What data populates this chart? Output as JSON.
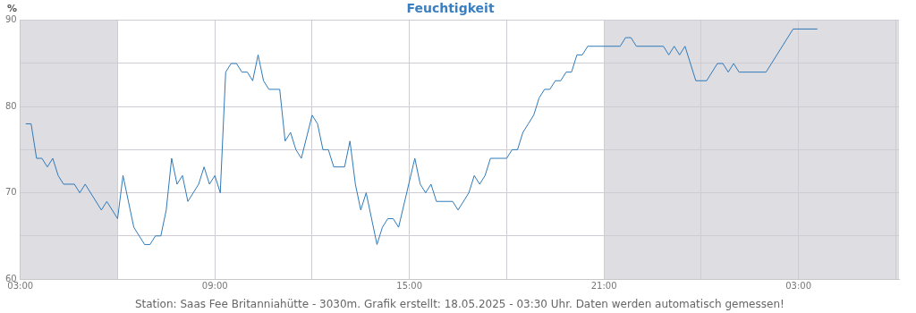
{
  "chart_data": {
    "type": "line",
    "title": "Feuchtigkeit",
    "ylabel": "%",
    "annotations": [
      "Station: Saas Fee Britanniahütte - 3030m. Grafik erstellt: 18.05.2025 - 03:30 Uhr. Daten werden automatisch gemessen!"
    ],
    "series": [
      {
        "color": "#2f7ab9",
        "x": [
          "2025-05-17T03:10",
          "2025-05-17T03:20",
          "2025-05-17T03:30",
          "2025-05-17T03:40",
          "2025-05-17T03:50",
          "2025-05-17T04:00",
          "2025-05-17T04:10",
          "2025-05-17T04:20",
          "2025-05-17T04:40",
          "2025-05-17T04:50",
          "2025-05-17T05:00",
          "2025-05-17T05:30",
          "2025-05-17T05:40",
          "2025-05-17T06:00",
          "2025-05-17T06:10",
          "2025-05-17T06:30",
          "2025-05-17T06:50",
          "2025-05-17T07:00",
          "2025-05-17T07:10",
          "2025-05-17T07:20",
          "2025-05-17T07:30",
          "2025-05-17T07:40",
          "2025-05-17T07:50",
          "2025-05-17T08:00",
          "2025-05-17T08:10",
          "2025-05-17T08:30",
          "2025-05-17T08:40",
          "2025-05-17T08:50",
          "2025-05-17T09:00",
          "2025-05-17T09:10",
          "2025-05-17T09:20",
          "2025-05-17T09:30",
          "2025-05-17T09:40",
          "2025-05-17T09:50",
          "2025-05-17T10:00",
          "2025-05-17T10:10",
          "2025-05-17T10:20",
          "2025-05-17T10:30",
          "2025-05-17T10:40",
          "2025-05-17T11:00",
          "2025-05-17T11:10",
          "2025-05-17T11:20",
          "2025-05-17T11:30",
          "2025-05-17T11:40",
          "2025-05-17T12:00",
          "2025-05-17T12:10",
          "2025-05-17T12:20",
          "2025-05-17T12:30",
          "2025-05-17T12:40",
          "2025-05-17T13:00",
          "2025-05-17T13:10",
          "2025-05-17T13:20",
          "2025-05-17T13:30",
          "2025-05-17T13:40",
          "2025-05-17T14:00",
          "2025-05-17T14:10",
          "2025-05-17T14:20",
          "2025-05-17T14:30",
          "2025-05-17T14:40",
          "2025-05-17T15:10",
          "2025-05-17T15:20",
          "2025-05-17T15:30",
          "2025-05-17T15:40",
          "2025-05-17T15:50",
          "2025-05-17T16:20",
          "2025-05-17T16:30",
          "2025-05-17T16:50",
          "2025-05-17T17:00",
          "2025-05-17T17:10",
          "2025-05-17T17:20",
          "2025-05-17T17:30",
          "2025-05-17T18:00",
          "2025-05-17T18:10",
          "2025-05-17T18:20",
          "2025-05-17T18:30",
          "2025-05-17T18:40",
          "2025-05-17T18:50",
          "2025-05-17T19:00",
          "2025-05-17T19:10",
          "2025-05-17T19:20",
          "2025-05-17T19:30",
          "2025-05-17T19:40",
          "2025-05-17T19:50",
          "2025-05-17T20:00",
          "2025-05-17T20:10",
          "2025-05-17T20:20",
          "2025-05-17T20:30",
          "2025-05-17T21:30",
          "2025-05-17T21:40",
          "2025-05-17T21:50",
          "2025-05-17T22:00",
          "2025-05-17T22:50",
          "2025-05-17T23:00",
          "2025-05-17T23:10",
          "2025-05-17T23:20",
          "2025-05-17T23:30",
          "2025-05-17T23:50",
          "2025-05-18T00:10",
          "2025-05-18T00:30",
          "2025-05-18T00:40",
          "2025-05-18T00:50",
          "2025-05-18T01:00",
          "2025-05-18T01:10",
          "2025-05-18T02:00",
          "2025-05-18T02:50",
          "2025-05-18T03:35"
        ],
        "values": [
          78,
          78,
          74,
          74,
          73,
          74,
          72,
          71,
          71,
          70,
          71,
          68,
          69,
          67,
          72,
          66,
          64,
          64,
          65,
          65,
          68,
          74,
          71,
          72,
          69,
          71,
          73,
          71,
          72,
          70,
          84,
          85,
          85,
          84,
          84,
          83,
          86,
          83,
          82,
          82,
          76,
          77,
          75,
          74,
          79,
          78,
          75,
          75,
          73,
          73,
          76,
          71,
          68,
          70,
          64,
          66,
          67,
          67,
          66,
          74,
          71,
          70,
          71,
          69,
          69,
          68,
          70,
          72,
          71,
          72,
          74,
          74,
          75,
          75,
          77,
          78,
          79,
          81,
          82,
          82,
          83,
          83,
          84,
          84,
          86,
          86,
          87,
          87,
          88,
          88,
          87,
          87,
          86,
          87,
          86,
          87,
          83,
          83,
          85,
          85,
          84,
          85,
          84,
          84,
          89,
          89
        ]
      }
    ],
    "xlim": [
      "2025-05-17T03:00",
      "2025-05-18T06:06"
    ],
    "xticks": [
      {
        "value": "2025-05-17T03:00",
        "label": "03:00"
      },
      {
        "value": "2025-05-17T06:00",
        "label": null
      },
      {
        "value": "2025-05-17T09:00",
        "label": "09:00"
      },
      {
        "value": "2025-05-17T12:00",
        "label": null
      },
      {
        "value": "2025-05-17T15:00",
        "label": "15:00"
      },
      {
        "value": "2025-05-17T18:00",
        "label": null
      },
      {
        "value": "2025-05-17T21:00",
        "label": "21:00"
      },
      {
        "value": "2025-05-18T00:00",
        "label": null
      },
      {
        "value": "2025-05-18T03:00",
        "label": "03:00"
      },
      {
        "value": "2025-05-18T06:00",
        "label": null
      }
    ],
    "ylim": [
      60,
      90
    ],
    "yticks": [
      60,
      {
        "value": 65,
        "label": null
      },
      70,
      {
        "value": 75,
        "label": null
      },
      80,
      {
        "value": 85,
        "label": null
      },
      90
    ],
    "bands": [
      {
        "axis": "x",
        "from": "2025-05-17T03:00",
        "to": "2025-05-17T06:00",
        "color": "#dedde2"
      },
      {
        "axis": "x",
        "from": "2025-05-17T21:00",
        "to": "2025-05-18T06:06",
        "color": "#dedde2"
      }
    ],
    "grid": true,
    "legend": false,
    "marker": "none",
    "line_style": "solid"
  }
}
